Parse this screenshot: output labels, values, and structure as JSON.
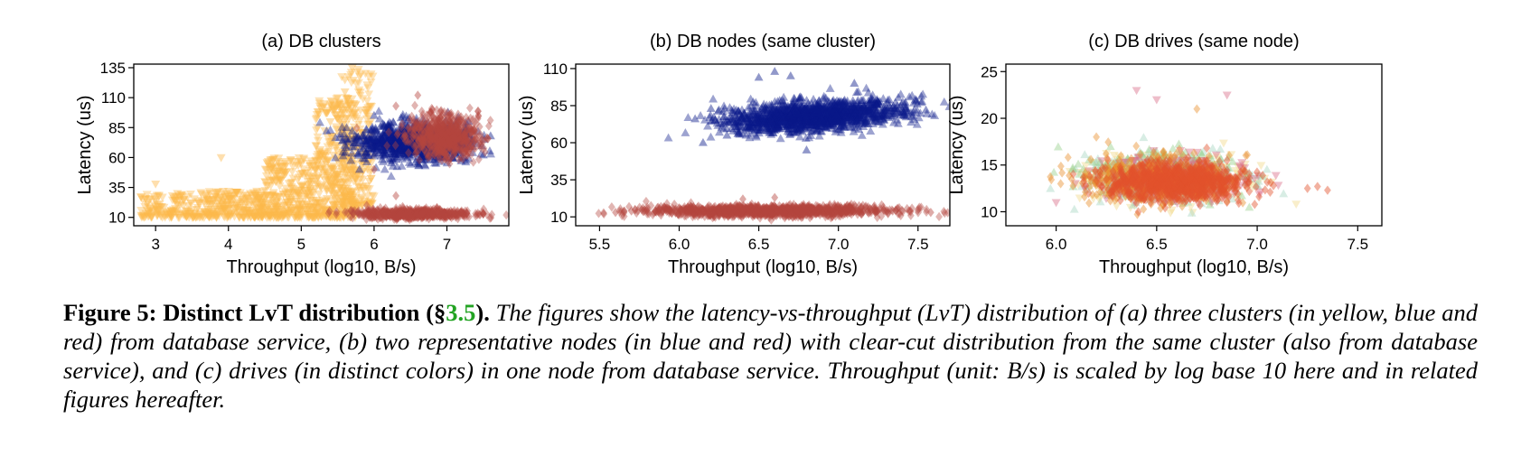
{
  "chart_data": [
    {
      "type": "scatter",
      "title": "(a) DB clusters",
      "xlabel": "Throughput (log10, B/s)",
      "ylabel": "Latency (us)",
      "xlim": [
        2.7,
        7.85
      ],
      "ylim": [
        3,
        138
      ],
      "xticks": [
        3,
        4,
        5,
        6,
        7
      ],
      "yticks": [
        10,
        35,
        60,
        85,
        110,
        135
      ],
      "grid": false,
      "legend": "none",
      "series": [
        {
          "color": "#fdb84c",
          "marker": "triangle-down",
          "count": 1300,
          "points": [
            [
              2.8,
              27
            ],
            [
              3.0,
              38
            ],
            [
              3.3,
              30
            ],
            [
              3.6,
              22
            ],
            [
              4.0,
              20
            ],
            [
              4.3,
              30
            ],
            [
              4.6,
              42
            ],
            [
              5.0,
              55
            ],
            [
              5.2,
              70
            ],
            [
              5.4,
              90
            ],
            [
              5.5,
              110
            ],
            [
              5.6,
              125
            ],
            [
              5.7,
              135
            ],
            [
              5.8,
              128
            ],
            [
              5.9,
              100
            ],
            [
              3.9,
              60
            ],
            [
              5.6,
              115
            ]
          ],
          "body": [
            {
              "x0": 2.8,
              "x1": 3.6,
              "ylo": 10,
              "yhi": 30,
              "w": 0.7
            },
            {
              "x0": 3.6,
              "x1": 4.5,
              "ylo": 10,
              "yhi": 32,
              "w": 1.2
            },
            {
              "x0": 4.5,
              "x1": 5.2,
              "ylo": 10,
              "yhi": 60,
              "w": 1.5
            },
            {
              "x0": 5.2,
              "x1": 5.75,
              "ylo": 10,
              "yhi": 110,
              "w": 1.6
            },
            {
              "x0": 5.55,
              "x1": 6.0,
              "ylo": 20,
              "yhi": 135,
              "w": 0.9
            }
          ]
        },
        {
          "color": "#0b1a8a",
          "marker": "triangle-up",
          "count": 1100,
          "points": [
            [
              5.6,
              70
            ],
            [
              5.7,
              82
            ],
            [
              5.8,
              50
            ],
            [
              6.0,
              95
            ],
            [
              7.3,
              90
            ],
            [
              7.6,
              78
            ],
            [
              7.5,
              62
            ]
          ],
          "body": [
            {
              "cx": 6.55,
              "cy": 73,
              "rx": 0.85,
              "ry": 17,
              "w": 1
            }
          ]
        },
        {
          "color": "#b5453f",
          "marker": "diamond",
          "count": 1300,
          "points": [
            [
              6.3,
              103
            ],
            [
              6.6,
              112
            ],
            [
              6.8,
              100
            ],
            [
              6.0,
              50
            ],
            [
              5.9,
              20
            ],
            [
              7.5,
              13
            ],
            [
              6.3,
              28
            ]
          ],
          "body": [
            {
              "cx": 6.95,
              "cy": 78,
              "rx": 0.55,
              "ry": 19,
              "w": 1
            },
            {
              "cx": 6.55,
              "cy": 13,
              "rx": 0.85,
              "ry": 4,
              "w": 1.1
            }
          ]
        }
      ]
    },
    {
      "type": "scatter",
      "title": "(b) DB nodes (same cluster)",
      "xlabel": "Throughput (log10, B/s)",
      "ylabel": "Latency (us)",
      "xlim": [
        5.35,
        7.7
      ],
      "ylim": [
        4,
        113
      ],
      "xticks": [
        5.5,
        6.0,
        6.5,
        7.0,
        7.5
      ],
      "yticks": [
        10,
        35,
        60,
        85,
        110
      ],
      "grid": false,
      "legend": "none",
      "series": [
        {
          "color": "#0b1a8a",
          "marker": "triangle-up",
          "count": 1500,
          "points": [
            [
              6.1,
              76
            ],
            [
              6.2,
              83
            ],
            [
              6.3,
              65
            ],
            [
              6.6,
              108
            ],
            [
              6.5,
              104
            ],
            [
              6.7,
              105
            ],
            [
              7.1,
              100
            ],
            [
              7.55,
              82
            ],
            [
              6.8,
              55
            ],
            [
              6.15,
              60
            ],
            [
              6.25,
              82
            ]
          ],
          "body": [
            {
              "cx": 6.85,
              "cy": 78,
              "rx": 0.6,
              "ry": 11,
              "w": 1,
              "tilt": 7
            }
          ]
        },
        {
          "color": "#b5453f",
          "marker": "diamond",
          "count": 1200,
          "points": [
            [
              5.6,
              13
            ],
            [
              5.7,
              14
            ],
            [
              5.8,
              15
            ],
            [
              6.4,
              22
            ],
            [
              6.6,
              23
            ],
            [
              7.45,
              14
            ],
            [
              7.58,
              13
            ]
          ],
          "body": [
            {
              "cx": 6.55,
              "cy": 14,
              "rx": 0.85,
              "ry": 4,
              "w": 1
            }
          ]
        }
      ]
    },
    {
      "type": "scatter",
      "title": "(c) DB drives (same node)",
      "xlabel": "Throughput (log10, B/s)",
      "ylabel": "Latency (us)",
      "xlim": [
        5.75,
        7.62
      ],
      "ylim": [
        8.5,
        25.8
      ],
      "xticks": [
        6.0,
        6.5,
        7.0,
        7.5
      ],
      "yticks": [
        10,
        15,
        20,
        25
      ],
      "grid": false,
      "legend": "none",
      "series": [
        {
          "color": "#f1d98b",
          "marker": "triangle-down",
          "count": 350,
          "points": [],
          "body": [
            {
              "cx": 6.55,
              "cy": 13.5,
              "rx": 0.45,
              "ry": 2.6,
              "w": 1
            }
          ]
        },
        {
          "color": "#a9d7c4",
          "marker": "triangle-up",
          "count": 350,
          "points": [],
          "body": [
            {
              "cx": 6.55,
              "cy": 13.5,
              "rx": 0.45,
              "ry": 2.6,
              "w": 1
            }
          ]
        },
        {
          "color": "#9ad08e",
          "marker": "triangle-up",
          "count": 300,
          "points": [],
          "body": [
            {
              "cx": 6.5,
              "cy": 14,
              "rx": 0.4,
              "ry": 2.6,
              "w": 1
            }
          ]
        },
        {
          "color": "#d96e8a",
          "marker": "triangle-down",
          "count": 300,
          "points": [
            [
              6.5,
              22
            ],
            [
              6.4,
              23
            ],
            [
              6.85,
              22.5
            ],
            [
              6.0,
              11
            ]
          ],
          "body": [
            {
              "cx": 6.6,
              "cy": 13.5,
              "rx": 0.4,
              "ry": 2.6,
              "w": 1
            }
          ]
        },
        {
          "color": "#e8912f",
          "marker": "diamond",
          "count": 450,
          "points": [
            [
              6.2,
              18
            ],
            [
              6.7,
              21
            ]
          ],
          "body": [
            {
              "cx": 6.5,
              "cy": 13.5,
              "rx": 0.4,
              "ry": 2.8,
              "w": 1
            }
          ]
        },
        {
          "color": "#e2512c",
          "marker": "diamond",
          "count": 900,
          "points": [
            [
              7.25,
              12.5
            ],
            [
              7.3,
              12.7
            ],
            [
              7.35,
              12.3
            ]
          ],
          "body": [
            {
              "cx": 6.6,
              "cy": 13.2,
              "rx": 0.38,
              "ry": 2.1,
              "w": 1
            }
          ]
        }
      ]
    }
  ],
  "caption": {
    "lead_before": "Figure 5: Distinct LvT distribution (§",
    "lead_ref": "3.5",
    "lead_after": ").",
    "body": " The figures show the latency-vs-throughput (LvT) distribution of (a) three clusters (in yellow, blue and red) from database service, (b) two representative nodes (in blue and red) with clear-cut distribution from the same cluster (also from database service), and (c) drives (in distinct colors) in one node from database service. Throughput (unit: B/s) is scaled by log base 10 here and in related figures hereafter."
  }
}
